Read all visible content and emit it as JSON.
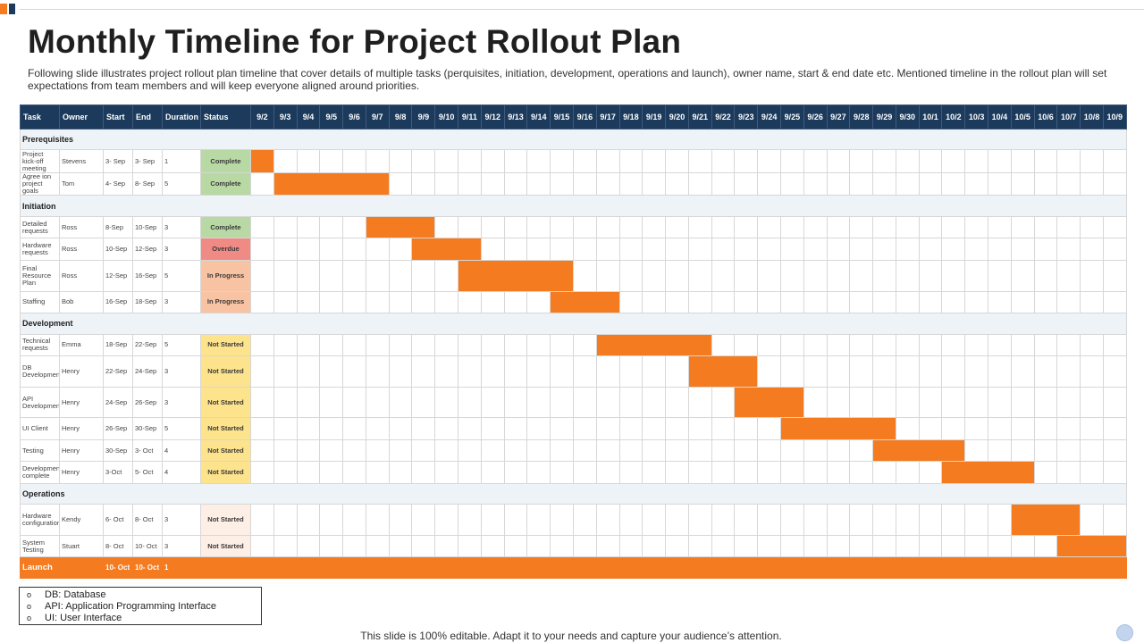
{
  "title": "Monthly Timeline for Project Rollout Plan",
  "subtitle": "Following slide illustrates project rollout plan timeline that cover details of multiple tasks (perquisites, initiation, development, operations and launch), owner name, start & end date etc. Mentioned timeline in the rollout plan will set expectations from team members and will keep everyone aligned around priorities.",
  "colors": {
    "header": "#1b3a5c",
    "bar": "#f47b20",
    "section_bg": "#eef3f8"
  },
  "status_colors": {
    "complete": "#b8d9a3",
    "overdue": "#f08a84",
    "in-progress": "#f8c3a2",
    "not-started": "#fde38c",
    "not-started-light": "#fdeee6"
  },
  "table": {
    "headers": {
      "task": "Task",
      "owner": "Owner",
      "start": "Start",
      "end": "End",
      "duration": "Duration",
      "status": "Status"
    },
    "days": [
      "9/2",
      "9/3",
      "9/4",
      "9/5",
      "9/6",
      "9/7",
      "9/8",
      "9/9",
      "9/10",
      "9/11",
      "9/12",
      "9/13",
      "9/14",
      "9/15",
      "9/16",
      "9/17",
      "9/18",
      "9/19",
      "9/20",
      "9/21",
      "9/22",
      "9/23",
      "9/24",
      "9/25",
      "9/26",
      "9/27",
      "9/28",
      "9/29",
      "9/30",
      "10/1",
      "10/2",
      "10/3",
      "10/4",
      "10/5",
      "10/6",
      "10/7",
      "10/8",
      "10/9"
    ],
    "rows": [
      {
        "kind": "section",
        "label": "Prerequisites"
      },
      {
        "kind": "task",
        "task": "Project kick-off meeting",
        "owner": "Stevens",
        "start": "3- Sep",
        "end": "3- Sep",
        "duration": "1",
        "status": "Complete",
        "status_type": "complete",
        "bar_start": 0,
        "bar_len": 1
      },
      {
        "kind": "task",
        "task": "Agree ion project goals",
        "owner": "Tom",
        "start": "4- Sep",
        "end": "8- Sep",
        "duration": "5",
        "status": "Complete",
        "status_type": "complete",
        "bar_start": 1,
        "bar_len": 5
      },
      {
        "kind": "section",
        "label": "Initiation"
      },
      {
        "kind": "task",
        "task": "Detailed requests",
        "owner": "Ross",
        "start": "8-Sep",
        "end": "10-Sep",
        "duration": "3",
        "status": "Complete",
        "status_type": "complete",
        "bar_start": 5,
        "bar_len": 3
      },
      {
        "kind": "task",
        "task": "Hardware requests",
        "owner": "Ross",
        "start": "10-Sep",
        "end": "12-Sep",
        "duration": "3",
        "status": "Overdue",
        "status_type": "overdue",
        "bar_start": 7,
        "bar_len": 3
      },
      {
        "kind": "task",
        "task": "Final Resource Plan",
        "owner": "Ross",
        "start": "12-Sep",
        "end": "16-Sep",
        "duration": "5",
        "status": "In Progress",
        "status_type": "in-progress",
        "bar_start": 9,
        "bar_len": 5
      },
      {
        "kind": "task",
        "task": "Staffing",
        "owner": "Bob",
        "start": "16-Sep",
        "end": "18-Sep",
        "duration": "3",
        "status": "In Progress",
        "status_type": "in-progress",
        "bar_start": 13,
        "bar_len": 3
      },
      {
        "kind": "section",
        "label": "Development"
      },
      {
        "kind": "task",
        "task": "Technical requests",
        "owner": "Emma",
        "start": "18-Sep",
        "end": "22-Sep",
        "duration": "5",
        "status": "Not Started",
        "status_type": "not-started",
        "bar_start": 15,
        "bar_len": 5
      },
      {
        "kind": "task",
        "task": "DB Development",
        "owner": "Henry",
        "start": "22-Sep",
        "end": "24-Sep",
        "duration": "3",
        "status": "Not Started",
        "status_type": "not-started",
        "bar_start": 19,
        "bar_len": 3
      },
      {
        "kind": "task",
        "task": "API Development",
        "owner": "Henry",
        "start": "24-Sep",
        "end": "26-Sep",
        "duration": "3",
        "status": "Not Started",
        "status_type": "not-started",
        "bar_start": 21,
        "bar_len": 3
      },
      {
        "kind": "task",
        "task": "UI Client",
        "owner": "Henry",
        "start": "26-Sep",
        "end": "30-Sep",
        "duration": "5",
        "status": "Not Started",
        "status_type": "not-started",
        "bar_start": 23,
        "bar_len": 5
      },
      {
        "kind": "task",
        "task": "Testing",
        "owner": "Henry",
        "start": "30-Sep",
        "end": "3- Oct",
        "duration": "4",
        "status": "Not Started",
        "status_type": "not-started",
        "bar_start": 27,
        "bar_len": 4
      },
      {
        "kind": "task",
        "task": "Development complete",
        "owner": "Henry",
        "start": "3-Oct",
        "end": "5- Oct",
        "duration": "4",
        "status": "Not Started",
        "status_type": "not-started",
        "bar_start": 30,
        "bar_len": 4
      },
      {
        "kind": "section",
        "label": "Operations"
      },
      {
        "kind": "task",
        "task": "Hardware configuration",
        "owner": "Kendy",
        "start": "6- Oct",
        "end": "8- Oct",
        "duration": "3",
        "status": "Not Started",
        "status_type": "not-started-light",
        "bar_start": 33,
        "bar_len": 3
      },
      {
        "kind": "task",
        "task": "System Testing",
        "owner": "Stuart",
        "start": "8- Oct",
        "end": "10- Oct",
        "duration": "3",
        "status": "Not Started",
        "status_type": "not-started-light",
        "bar_start": 35,
        "bar_len": 3
      },
      {
        "kind": "launch",
        "task": "Launch",
        "owner": "",
        "start": "10- Oct",
        "end": "10- Oct",
        "duration": "1"
      }
    ]
  },
  "legend": [
    {
      "bullet": "o",
      "text": "DB: Database"
    },
    {
      "bullet": "o",
      "text": "API: Application Programming Interface"
    },
    {
      "bullet": "o",
      "text": "UI: User Interface"
    }
  ],
  "footer": "This slide is 100% editable. Adapt it to your needs and capture your audience’s attention."
}
